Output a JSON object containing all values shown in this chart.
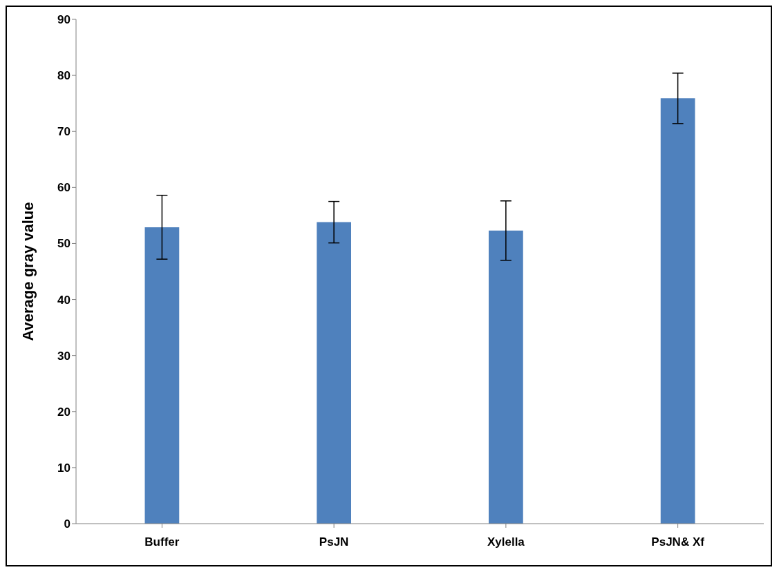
{
  "chart_data": {
    "type": "bar",
    "ylabel": "Average gray value",
    "categories": [
      "Buffer",
      "PsJN",
      "Xylella",
      "PsJN& Xf"
    ],
    "series": [
      {
        "color": "#4f81bd",
        "values": [
          52.9,
          53.8,
          52.3,
          75.9
        ],
        "errors": [
          5.7,
          3.7,
          5.3,
          4.5
        ]
      }
    ],
    "ylim": [
      0,
      90
    ],
    "yticks": [
      0,
      10,
      20,
      30,
      40,
      50,
      60,
      70,
      80,
      90
    ],
    "grid": false,
    "legend": false
  }
}
